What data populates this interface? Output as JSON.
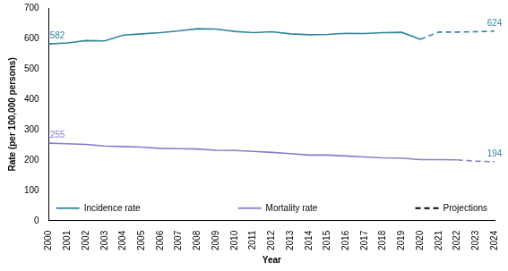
{
  "chart_data": {
    "type": "line",
    "x_label": "Year",
    "y_label": "Rate (per 100,000 persons)",
    "categories": [
      "2000",
      "2001",
      "2002",
      "2003",
      "2004",
      "2005",
      "2006",
      "2007",
      "2008",
      "2009",
      "2010",
      "2011",
      "2012",
      "2013",
      "2014",
      "2015",
      "2016",
      "2017",
      "2018",
      "2019",
      "2020",
      "2021",
      "2022",
      "2023",
      "2024"
    ],
    "series": [
      {
        "name": "Incidence rate",
        "color": "#31849b",
        "line_style": "solid",
        "values": [
          582,
          585,
          593,
          592,
          611,
          615,
          619,
          625,
          632,
          631,
          623,
          619,
          622,
          615,
          612,
          613,
          617,
          616,
          619,
          620,
          597,
          null,
          null,
          null,
          null
        ]
      },
      {
        "name": "Mortality rate",
        "color": "#8b7ac6",
        "line_style": "solid",
        "values": [
          255,
          253,
          251,
          246,
          244,
          242,
          238,
          237,
          236,
          232,
          231,
          228,
          225,
          221,
          216,
          216,
          213,
          210,
          207,
          206,
          201,
          201,
          200,
          null,
          null
        ]
      },
      {
        "name": "Projections",
        "color": "#31849b",
        "line_style": "dashed",
        "values": [
          null,
          null,
          null,
          null,
          null,
          null,
          null,
          null,
          null,
          null,
          null,
          null,
          null,
          null,
          null,
          null,
          null,
          null,
          null,
          null,
          597,
          621,
          621,
          622,
          624
        ]
      },
      {
        "name": "Projections",
        "color": "#8b7ac6",
        "line_style": "dashed",
        "values": [
          null,
          null,
          null,
          null,
          null,
          null,
          null,
          null,
          null,
          null,
          null,
          null,
          null,
          null,
          null,
          null,
          null,
          null,
          null,
          null,
          null,
          null,
          200,
          196,
          194
        ]
      }
    ],
    "annotations": [
      {
        "series": "Incidence rate",
        "x": "2000",
        "y": 582,
        "text": "582"
      },
      {
        "series": "Mortality rate",
        "x": "2000",
        "y": 255,
        "text": "255"
      },
      {
        "series": "Projections",
        "x": "2024",
        "y": 624,
        "text": "624"
      },
      {
        "series": "Projections",
        "x": "2024",
        "y": 194,
        "text": "194"
      }
    ],
    "ylim": [
      0,
      700
    ],
    "yticks": [
      0,
      100,
      200,
      300,
      400,
      500,
      600,
      700
    ],
    "grid": false,
    "legend": "bottom"
  }
}
